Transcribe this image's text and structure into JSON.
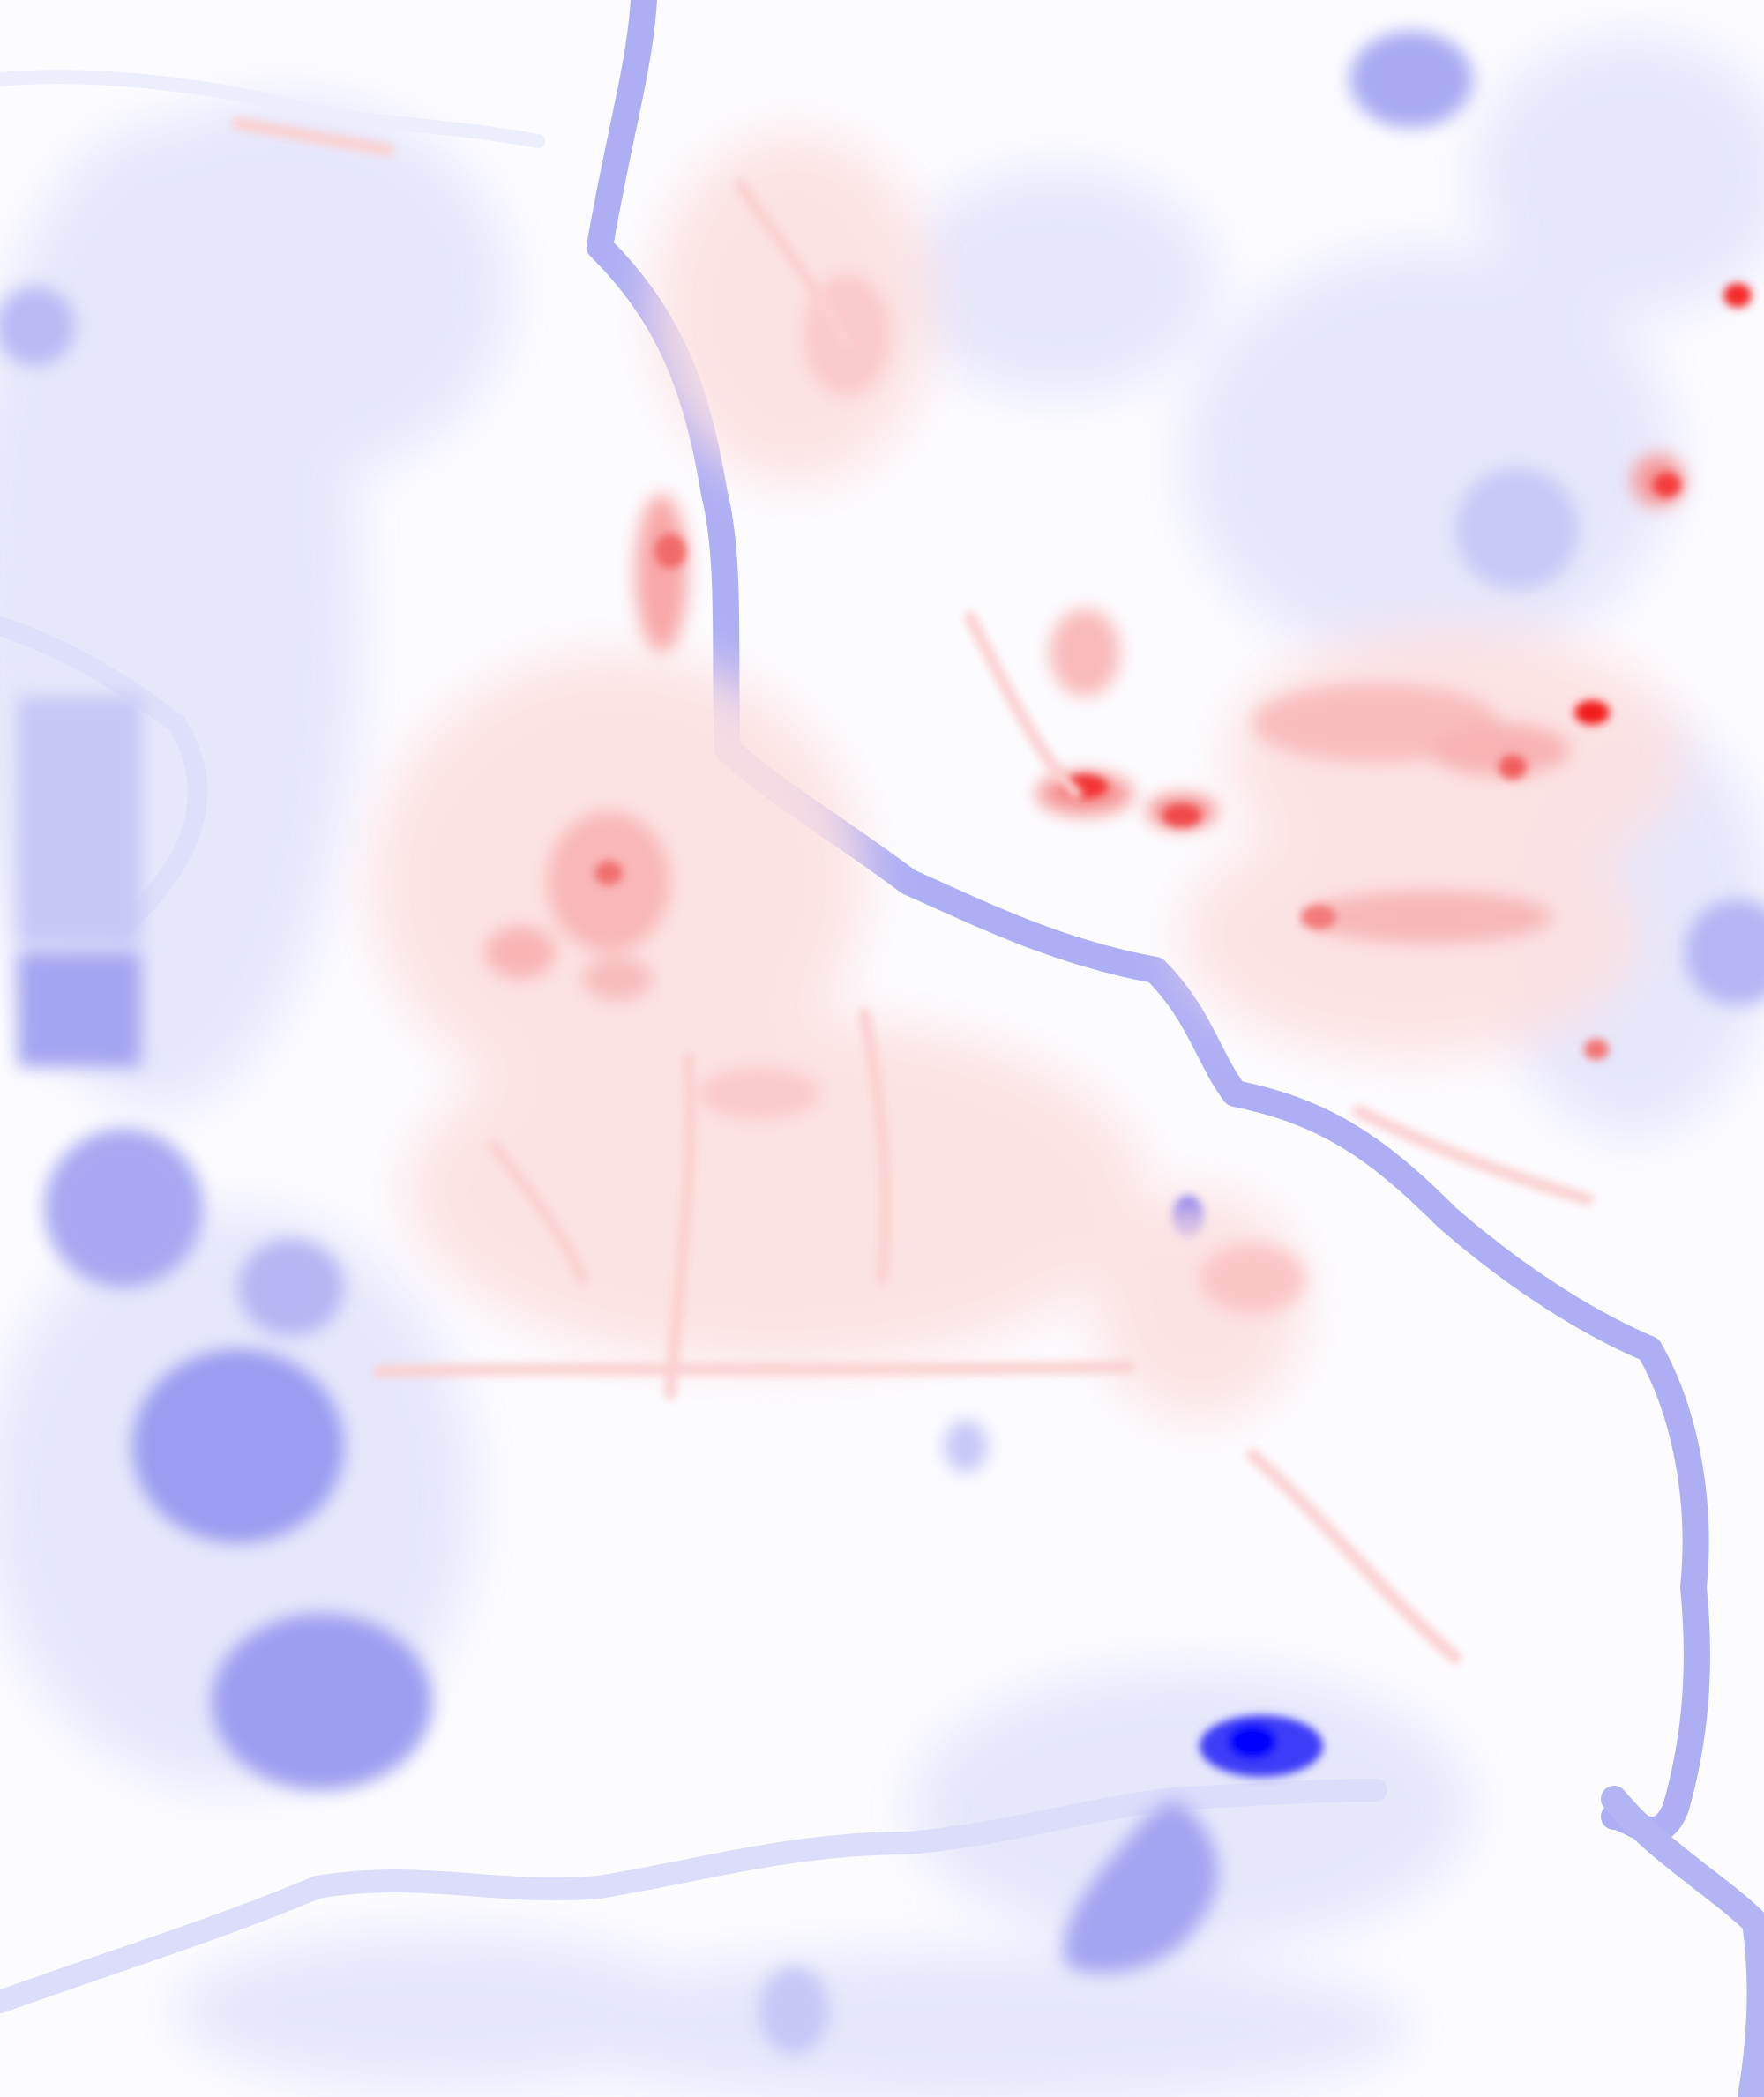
{
  "map": {
    "colors": {
      "background": "#fcfcff",
      "negative_strong": "#0000ff",
      "negative_mid": "#8f91ea",
      "negative_light": "#dcdcfb",
      "positive_strong": "#ff0000",
      "positive_mid": "#f26f6f",
      "positive_light": "#fbd2d2",
      "neutral": "#ffffff"
    },
    "scale": {
      "min": -1,
      "max": 1,
      "diverging": true
    }
  }
}
